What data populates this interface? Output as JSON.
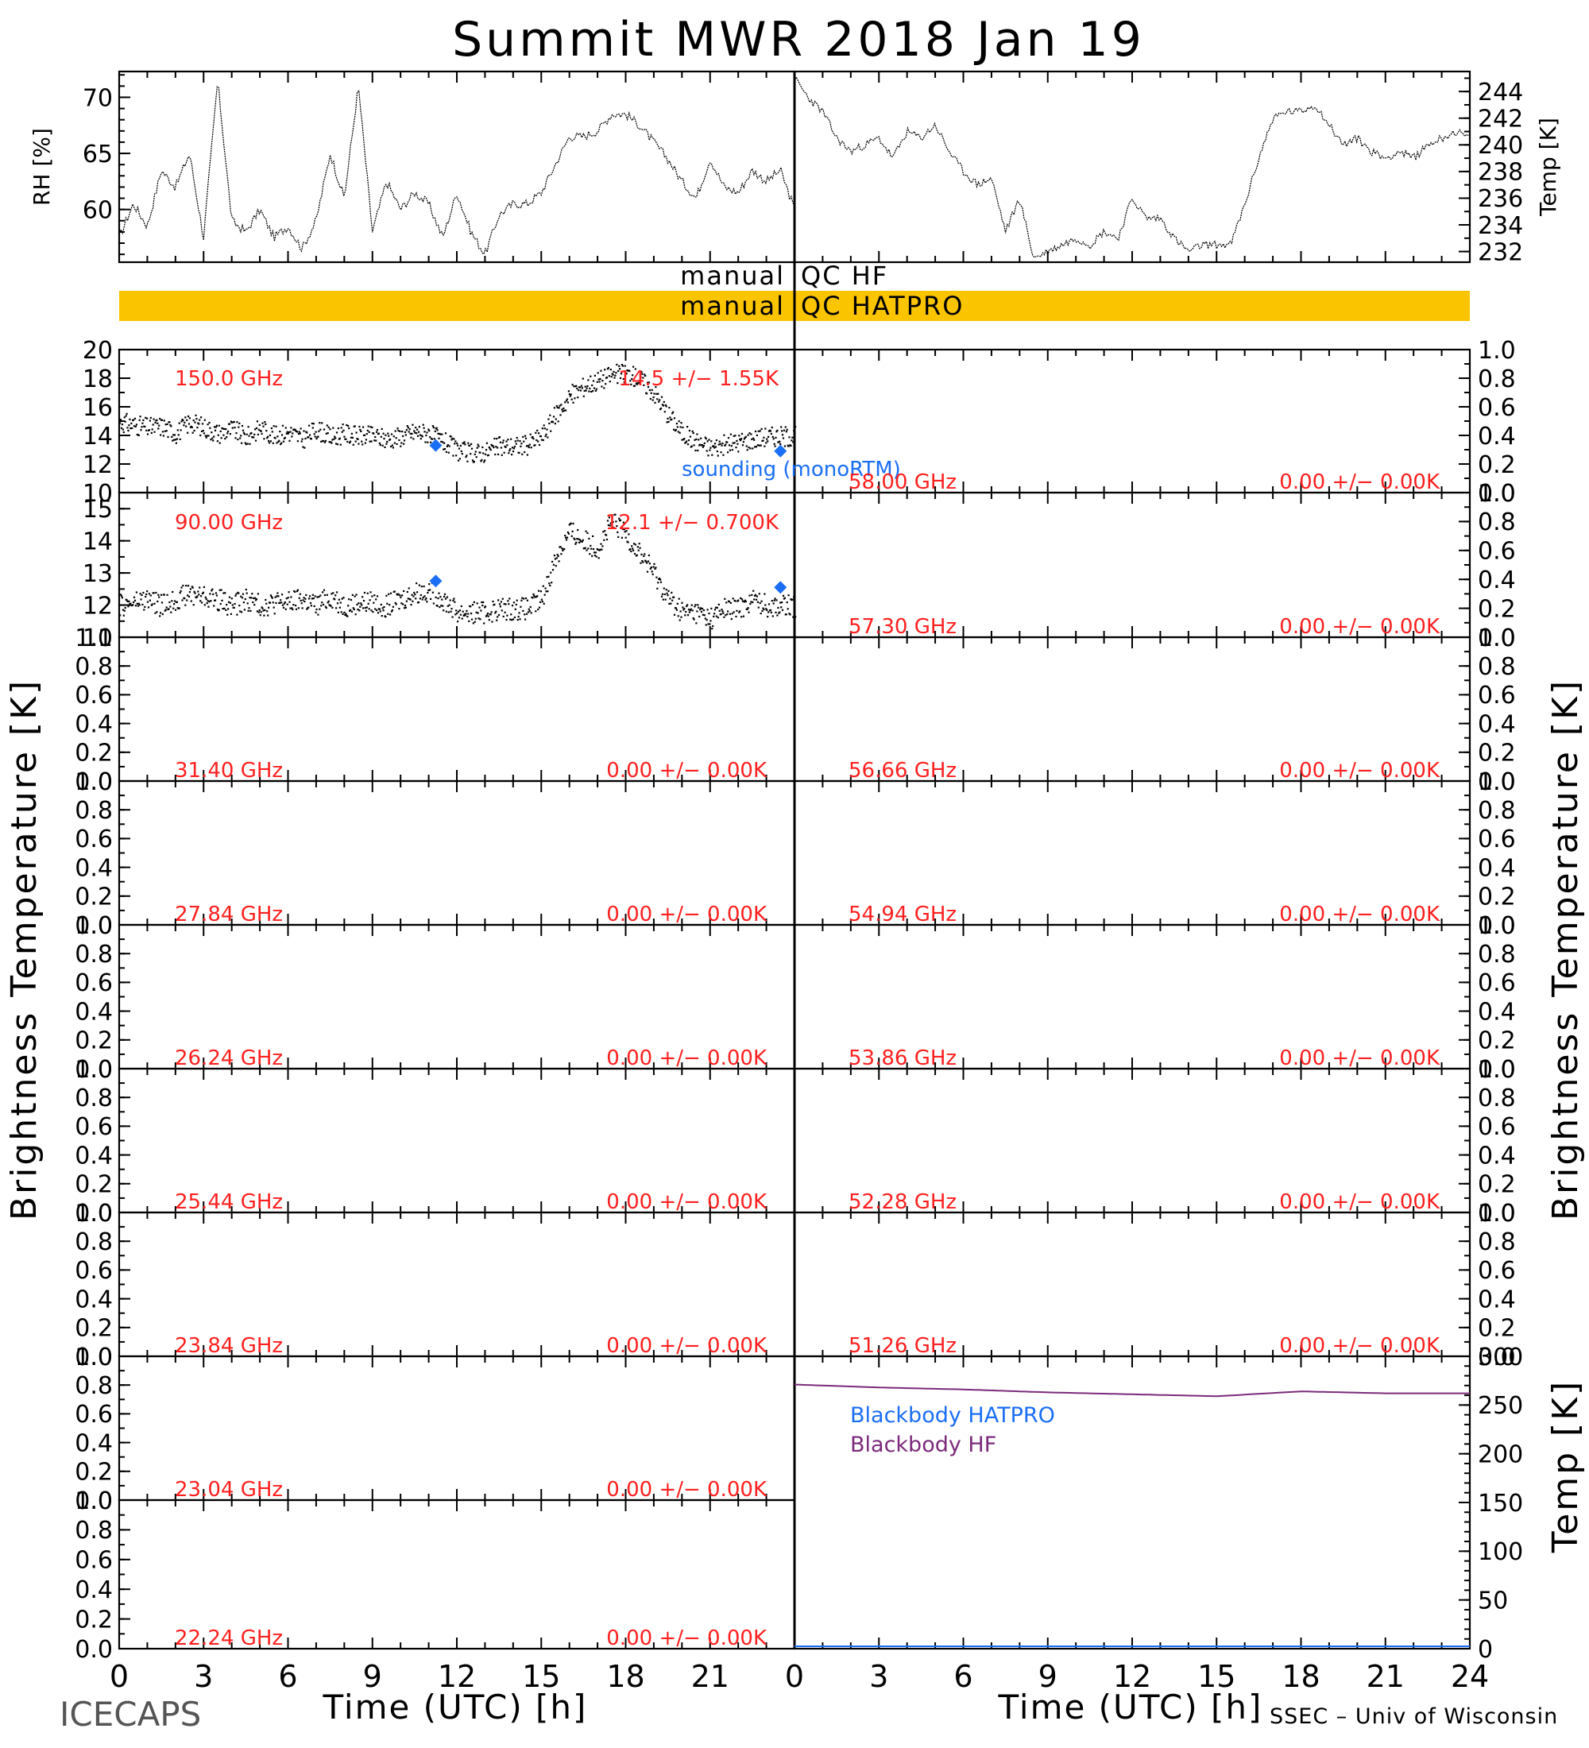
{
  "title": "Summit MWR 2018 Jan 19",
  "footer_left": "ICECAPS",
  "footer_right": "SSEC – Univ of Wisconsin",
  "colors": {
    "label_red": "#ff2020",
    "sounding_blue": "#1a6ef5",
    "qc_hatpro_fill": "#fbc400",
    "blackbody_hf": "#7b2a7b",
    "trace": "#000000"
  },
  "top_panels": {
    "rh": {
      "ylabel": "RH [%]",
      "yticks": [
        "60",
        "65",
        "70"
      ],
      "ylim": [
        55.3,
        72.3
      ]
    },
    "temp": {
      "ylabel": "Temp [K]",
      "yticks": [
        "232",
        "234",
        "236",
        "238",
        "240",
        "242",
        "244"
      ],
      "ylim": [
        231.2,
        245.5
      ]
    }
  },
  "qc": {
    "hf_left": "manual",
    "hf_right": "QC HF",
    "hatpro_left": "manual",
    "hatpro_right": "QC HATPRO"
  },
  "ylabel_left": "Brightness Temperature [K]",
  "ylabel_right": "Brightness Temperature [K]",
  "ylabel_bb": "Temp [K]",
  "unit_ticks": [
    "0.0",
    "0.2",
    "0.4",
    "0.6",
    "0.8",
    "1.0"
  ],
  "ch150": {
    "freq": "150.0 GHz",
    "stat": "14.5 +/−  1.55K",
    "yticks": [
      "10",
      "12",
      "14",
      "16",
      "18",
      "20"
    ],
    "ylim": [
      10,
      20
    ]
  },
  "ch90": {
    "freq": "90.00 GHz",
    "stat": "12.1 +/− 0.700K",
    "yticks": [
      "11",
      "12",
      "13",
      "14",
      "15"
    ],
    "ylim": [
      11,
      15.5
    ]
  },
  "sounding_label": "sounding (monoRTM)",
  "left_empty": [
    {
      "freq": "31.40 GHz",
      "stat": "0.00 +/−  0.00K"
    },
    {
      "freq": "27.84 GHz",
      "stat": "0.00 +/−  0.00K"
    },
    {
      "freq": "26.24 GHz",
      "stat": "0.00 +/−  0.00K"
    },
    {
      "freq": "25.44 GHz",
      "stat": "0.00 +/−  0.00K"
    },
    {
      "freq": "23.84 GHz",
      "stat": "0.00 +/−  0.00K"
    },
    {
      "freq": "23.04 GHz",
      "stat": "0.00 +/−  0.00K"
    },
    {
      "freq": "22.24 GHz",
      "stat": "0.00 +/−  0.00K"
    }
  ],
  "right_empty": [
    {
      "freq": "58.00 GHz",
      "stat": "0.00 +/−  0.00K"
    },
    {
      "freq": "57.30 GHz",
      "stat": "0.00 +/−  0.00K"
    },
    {
      "freq": "56.66 GHz",
      "stat": "0.00 +/−  0.00K"
    },
    {
      "freq": "54.94 GHz",
      "stat": "0.00 +/−  0.00K"
    },
    {
      "freq": "53.86 GHz",
      "stat": "0.00 +/−  0.00K"
    },
    {
      "freq": "52.28 GHz",
      "stat": "0.00 +/−  0.00K"
    },
    {
      "freq": "51.26 GHz",
      "stat": "0.00 +/−  0.00K"
    }
  ],
  "blackbody": {
    "yticks": [
      "0",
      "50",
      "100",
      "150",
      "200",
      "250",
      "300"
    ],
    "ylim": [
      0,
      300
    ],
    "legend_hatpro": "Blackbody HATPRO",
    "legend_hf": "Blackbody HF"
  },
  "xaxis": {
    "left_ticks": [
      "0",
      "3",
      "6",
      "9",
      "12",
      "15",
      "18",
      "21"
    ],
    "right_ticks": [
      "0",
      "3",
      "6",
      "9",
      "12",
      "15",
      "18",
      "21",
      "24"
    ],
    "label": "Time (UTC) [h]"
  },
  "chart_data": [
    {
      "type": "line",
      "title": "",
      "ylabel": "RH [%]",
      "xlim": [
        0,
        24
      ],
      "ylim": [
        55.3,
        72.3
      ],
      "series": [
        {
          "x": [
            0,
            0.5,
            1,
            1.5,
            2,
            2.5,
            3,
            3.5,
            4,
            4.5,
            5,
            5.5,
            6,
            6.5,
            7,
            7.5,
            8,
            8.5,
            9,
            9.5,
            10,
            10.5,
            11,
            11.5,
            12,
            12.5,
            13,
            13.5,
            14,
            14.5,
            15,
            15.5,
            16,
            16.5,
            17,
            17.5,
            18,
            18.5,
            19,
            19.5,
            20,
            20.5,
            21,
            21.5,
            22,
            22.5,
            23,
            23.5,
            24
          ],
          "y": [
            57.5,
            60.5,
            58.5,
            63.5,
            62.0,
            65.0,
            57.5,
            71.5,
            59.0,
            58.0,
            60.0,
            57.5,
            58.5,
            56.5,
            59.0,
            65.0,
            61.0,
            71.0,
            58.0,
            62.5,
            60.0,
            61.5,
            60.5,
            57.5,
            61.5,
            58.0,
            56.0,
            59.5,
            60.5,
            60.5,
            61.5,
            64.0,
            66.5,
            66.5,
            67.0,
            68.5,
            68.5,
            67.5,
            66.0,
            64.5,
            62.5,
            61.0,
            64.5,
            62.0,
            61.5,
            63.5,
            62.5,
            63.5,
            60.0
          ]
        }
      ]
    },
    {
      "type": "line",
      "title": "",
      "ylabel": "Temp [K]",
      "xlim": [
        0,
        24
      ],
      "ylim": [
        231.2,
        245.5
      ],
      "series": [
        {
          "x": [
            0,
            0.5,
            1,
            1.5,
            2,
            2.5,
            3,
            3.5,
            4,
            4.5,
            5,
            5.5,
            6,
            6.5,
            7,
            7.5,
            8,
            8.5,
            9,
            9.5,
            10,
            10.5,
            11,
            11.5,
            12,
            12.5,
            13,
            13.5,
            14,
            14.5,
            15,
            15.5,
            16,
            16.5,
            17,
            17.5,
            18,
            18.5,
            19,
            19.5,
            20,
            20.5,
            21,
            21.5,
            22,
            22.5,
            23,
            23.5,
            24
          ],
          "y": [
            245.0,
            243.5,
            242.5,
            240.5,
            239.5,
            240.0,
            240.5,
            239.0,
            241.0,
            240.5,
            241.5,
            239.5,
            238.0,
            237.0,
            237.5,
            233.5,
            236.0,
            231.5,
            232.0,
            232.5,
            233.0,
            232.5,
            233.5,
            233.0,
            236.0,
            234.5,
            234.5,
            233.0,
            232.0,
            232.5,
            232.5,
            232.5,
            235.5,
            239.0,
            242.0,
            242.5,
            242.5,
            243.0,
            241.5,
            240.0,
            240.5,
            239.5,
            239.0,
            239.5,
            239.0,
            240.0,
            240.5,
            241.0,
            240.5
          ]
        }
      ]
    },
    {
      "type": "scatter",
      "title": "150.0 GHz",
      "xlim": [
        0,
        24
      ],
      "ylim": [
        10,
        20
      ],
      "series": [
        {
          "name": "150.0 GHz",
          "x": [
            0,
            0.5,
            1,
            1.5,
            2,
            2.5,
            3,
            3.5,
            4,
            4.5,
            5,
            5.5,
            6,
            6.5,
            7,
            7.5,
            8,
            8.5,
            9,
            9.5,
            10,
            10.5,
            11,
            11.5,
            12,
            12.5,
            13,
            13.5,
            14,
            14.5,
            15,
            15.5,
            16,
            16.5,
            17,
            17.5,
            18,
            18.5,
            19,
            19.5,
            20,
            20.5,
            21,
            21.5,
            22,
            22.5,
            23
          ],
          "y": [
            15.0,
            14.8,
            14.6,
            14.7,
            14.2,
            15.0,
            14.6,
            14.2,
            14.5,
            13.9,
            14.6,
            14.0,
            14.3,
            13.8,
            14.5,
            13.9,
            14.2,
            14.0,
            14.0,
            13.8,
            14.0,
            14.3,
            14.2,
            13.6,
            13.0,
            12.8,
            12.9,
            13.3,
            13.3,
            13.4,
            14.0,
            15.5,
            16.8,
            17.5,
            17.9,
            18.3,
            18.4,
            18.0,
            17.0,
            15.5,
            14.2,
            13.6,
            13.2,
            13.4,
            13.6,
            13.8,
            14.0
          ]
        },
        {
          "name": "sounding (monoRTM)",
          "x": [
            11.25,
            23.5
          ],
          "y": [
            13.3,
            12.9
          ]
        }
      ]
    },
    {
      "type": "scatter",
      "title": "90.00 GHz",
      "xlim": [
        0,
        24
      ],
      "ylim": [
        11,
        15.5
      ],
      "series": [
        {
          "name": "90.00 GHz",
          "x": [
            0,
            0.5,
            1,
            1.5,
            2,
            2.5,
            3,
            3.5,
            4,
            4.5,
            5,
            5.5,
            6,
            6.5,
            7,
            7.5,
            8,
            8.5,
            9,
            9.5,
            10,
            10.5,
            11,
            11.5,
            12,
            12.5,
            13,
            13.5,
            14,
            14.5,
            15,
            15.5,
            16,
            16.5,
            17,
            17.5,
            18,
            18.5,
            19,
            19.5,
            20,
            20.5,
            21,
            21.5,
            22,
            22.5,
            23
          ],
          "y": [
            12.0,
            12.1,
            12.2,
            12.0,
            12.2,
            12.4,
            12.3,
            12.2,
            12.0,
            12.2,
            12.0,
            12.1,
            12.1,
            12.2,
            12.0,
            12.3,
            12.0,
            12.1,
            12.1,
            12.0,
            12.2,
            12.4,
            12.5,
            12.2,
            11.8,
            11.8,
            11.8,
            11.9,
            11.9,
            11.9,
            12.2,
            13.5,
            14.3,
            14.0,
            13.8,
            14.6,
            14.2,
            13.6,
            13.0,
            12.2,
            11.8,
            11.8,
            11.6,
            11.9,
            11.9,
            12.2,
            12.0
          ]
        },
        {
          "name": "sounding (monoRTM)",
          "x": [
            11.25,
            23.5
          ],
          "y": [
            12.75,
            12.55
          ]
        }
      ]
    },
    {
      "type": "line",
      "title": "",
      "ylabel": "Temp [K]",
      "xlim": [
        0,
        24
      ],
      "ylim": [
        0,
        300
      ],
      "series": [
        {
          "name": "Blackbody HF",
          "x": [
            0,
            3,
            6,
            9,
            12,
            15,
            18,
            21,
            24
          ],
          "y": [
            271,
            268,
            266,
            263,
            261,
            259,
            264,
            262,
            262
          ]
        },
        {
          "name": "Blackbody HATPRO",
          "x": [
            0,
            24
          ],
          "y": [
            0,
            0
          ]
        }
      ]
    }
  ]
}
